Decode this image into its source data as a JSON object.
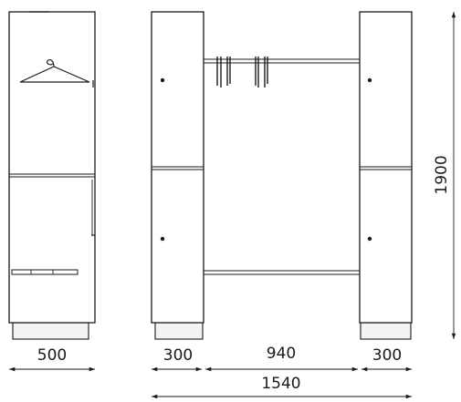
{
  "dimensions": {
    "side_depth": "500",
    "left_cabinet_width": "300",
    "middle_width": "940",
    "right_cabinet_width": "300",
    "total_width": "1540",
    "height": "1900"
  }
}
